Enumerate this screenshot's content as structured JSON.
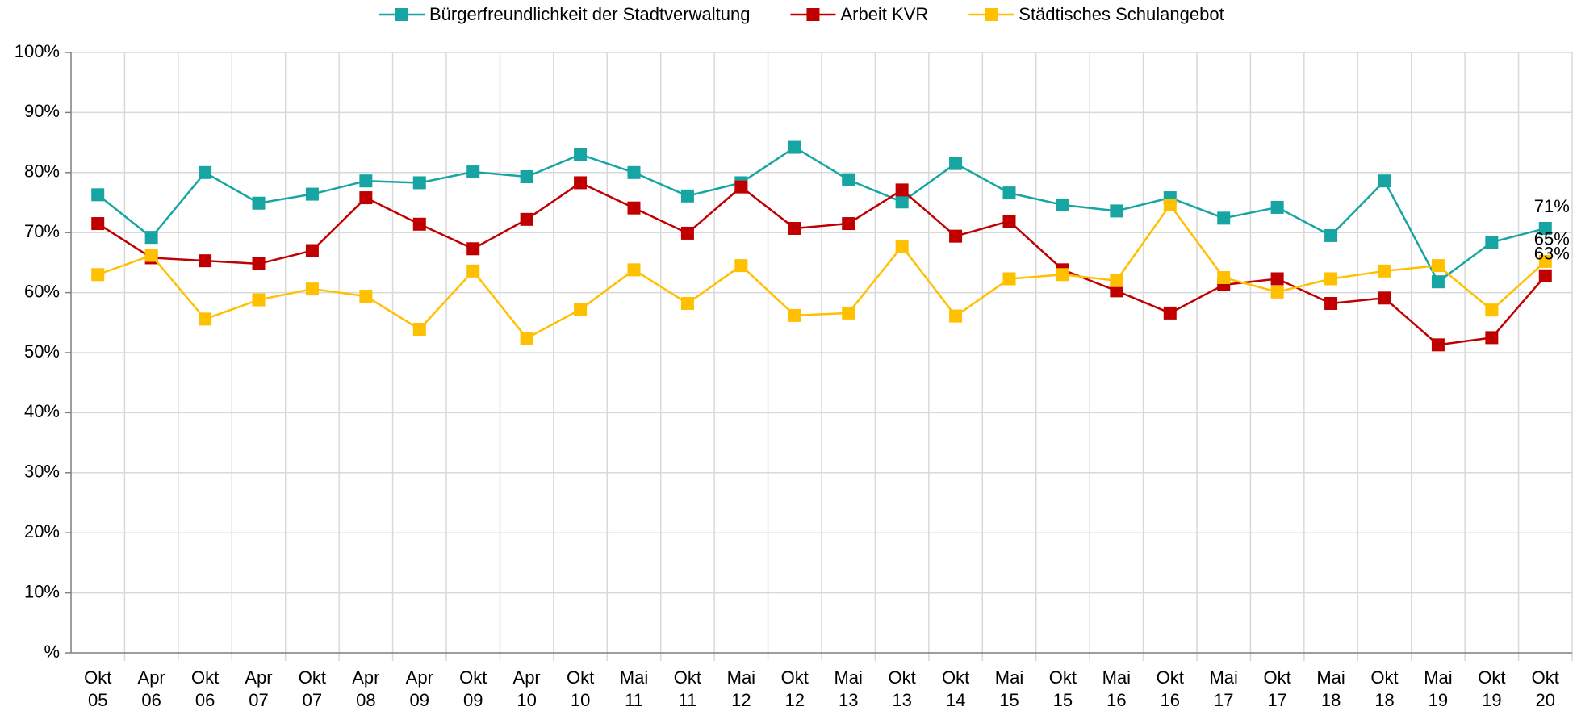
{
  "chart_data": {
    "type": "line",
    "categories": [
      "Okt 05",
      "Apr 06",
      "Okt 06",
      "Apr 07",
      "Okt 07",
      "Apr 08",
      "Apr 09",
      "Okt 09",
      "Apr 10",
      "Okt 10",
      "Mai 11",
      "Okt 11",
      "Mai 12",
      "Okt 12",
      "Mai 13",
      "Okt 13",
      "Okt 14",
      "Mai 15",
      "Okt 15",
      "Mai 16",
      "Okt 16",
      "Mai 17",
      "Okt 17",
      "Mai 18",
      "Okt 18",
      "Mai 19",
      "Okt 19",
      "Okt 20"
    ],
    "series": [
      {
        "name": "Bürgerfreundlichkeit der Stadtverwaltung",
        "color": "#16a5a3",
        "values": [
          76.3,
          69.2,
          80,
          74.9,
          76.4,
          78.6,
          78.3,
          80.1,
          79.3,
          83,
          80,
          76.1,
          78.3,
          84.2,
          78.8,
          75.1,
          81.5,
          76.6,
          74.6,
          73.6,
          75.8,
          72.4,
          74.2,
          69.5,
          78.6,
          61.8,
          68.4,
          70.7
        ],
        "value_labels": [
          null,
          null,
          null,
          null,
          null,
          null,
          null,
          null,
          null,
          null,
          null,
          null,
          null,
          null,
          null,
          null,
          null,
          null,
          null,
          null,
          null,
          null,
          null,
          null,
          null,
          null,
          null,
          "71%"
        ]
      },
      {
        "name": "Arbeit KVR",
        "color": "#c00000",
        "values": [
          71.5,
          65.8,
          65.3,
          64.8,
          67,
          75.8,
          71.4,
          67.3,
          72.2,
          78.3,
          74.1,
          69.9,
          77.6,
          70.7,
          71.5,
          77.1,
          69.4,
          71.9,
          63.8,
          60.3,
          56.6,
          61.3,
          62.3,
          58.2,
          59.1,
          51.3,
          52.5,
          62.8
        ],
        "value_labels": [
          null,
          null,
          null,
          null,
          null,
          null,
          null,
          null,
          null,
          null,
          null,
          null,
          null,
          null,
          null,
          null,
          null,
          null,
          null,
          null,
          null,
          null,
          null,
          null,
          null,
          null,
          null,
          "63%"
        ]
      },
      {
        "name": "Städtisches Schulangebot",
        "color": "#ffc000",
        "values": [
          63,
          66.2,
          55.6,
          58.8,
          60.6,
          59.4,
          53.9,
          63.6,
          52.4,
          57.2,
          63.8,
          58.2,
          64.5,
          56.2,
          56.6,
          67.7,
          56.1,
          62.3,
          63,
          62,
          74.6,
          62.5,
          60.1,
          62.3,
          63.6,
          64.5,
          57.1,
          65.2
        ],
        "value_labels": [
          null,
          null,
          null,
          null,
          null,
          null,
          null,
          null,
          null,
          null,
          null,
          null,
          null,
          null,
          null,
          null,
          null,
          null,
          null,
          null,
          null,
          null,
          null,
          null,
          null,
          null,
          null,
          "65%"
        ]
      }
    ],
    "ylim": [
      0,
      100
    ],
    "yticks": [
      {
        "value": 0,
        "label": "%"
      },
      {
        "value": 10,
        "label": "10%"
      },
      {
        "value": 20,
        "label": "20%"
      },
      {
        "value": 30,
        "label": "30%"
      },
      {
        "value": 40,
        "label": "40%"
      },
      {
        "value": 50,
        "label": "50%"
      },
      {
        "value": 60,
        "label": "60%"
      },
      {
        "value": 70,
        "label": "70%"
      },
      {
        "value": 80,
        "label": "80%"
      },
      {
        "value": 90,
        "label": "90%"
      },
      {
        "value": 100,
        "label": "100%"
      }
    ],
    "grid": true,
    "legend": "top"
  }
}
